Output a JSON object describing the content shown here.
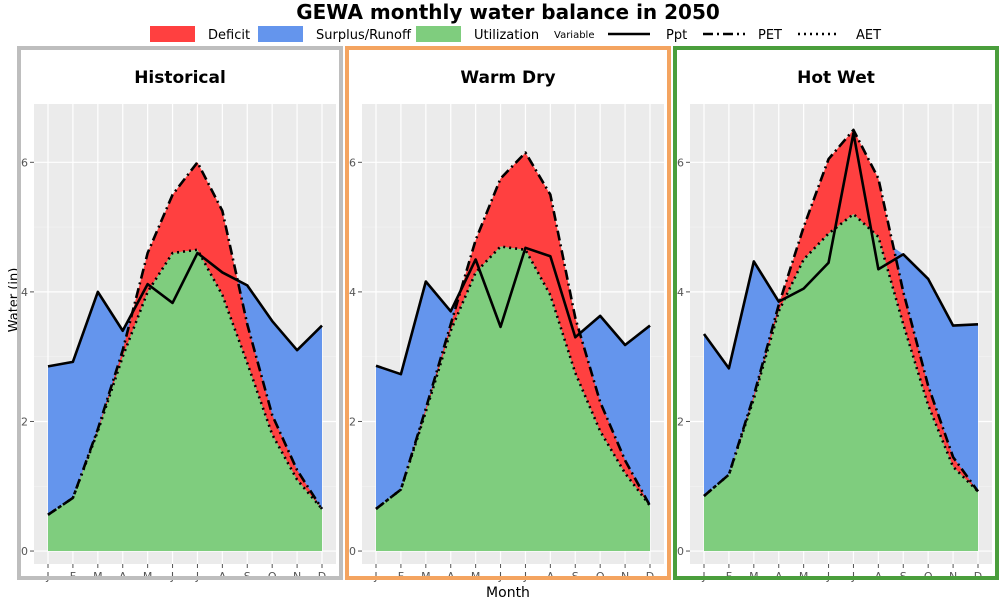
{
  "title": "GEWA monthly water balance in 2050",
  "legend": {
    "fills": [
      {
        "label": "Deficit",
        "color": "#FF4040"
      },
      {
        "label": "Surplus/Runoff",
        "color": "#6495ED"
      },
      {
        "label": "Utilization",
        "color": "#7FCD7E"
      }
    ],
    "variable_title": "Variable",
    "lines": [
      {
        "label": "Ppt",
        "style": "solid"
      },
      {
        "label": "PET",
        "style": "dashdot"
      },
      {
        "label": "AET",
        "style": "dotted"
      }
    ]
  },
  "axes": {
    "ylabel": "Water (in)",
    "xlabel": "Month",
    "yticks": [
      0,
      2,
      4,
      6
    ],
    "ylim": [
      -0.2,
      6.9
    ]
  },
  "chart_data": [
    {
      "type": "area",
      "title": "Historical",
      "border_color": "#BEBEBE",
      "categories": [
        "J",
        "F",
        "M",
        "A",
        "M",
        "J",
        "J",
        "A",
        "S",
        "O",
        "N",
        "D"
      ],
      "series": [
        {
          "name": "Ppt",
          "values": [
            2.85,
            2.92,
            4.0,
            3.4,
            4.12,
            3.83,
            4.6,
            4.3,
            4.1,
            3.55,
            3.1,
            3.48
          ]
        },
        {
          "name": "PET",
          "values": [
            0.56,
            0.82,
            1.88,
            3.1,
            4.6,
            5.5,
            6.0,
            5.25,
            3.5,
            2.1,
            1.25,
            0.65
          ]
        },
        {
          "name": "AET",
          "values": [
            0.56,
            0.82,
            1.85,
            3.0,
            4.0,
            4.6,
            4.65,
            3.95,
            2.9,
            1.8,
            1.1,
            0.65
          ]
        }
      ]
    },
    {
      "type": "area",
      "title": "Warm Dry",
      "border_color": "#F4A460",
      "categories": [
        "J",
        "F",
        "M",
        "A",
        "M",
        "J",
        "J",
        "A",
        "S",
        "O",
        "N",
        "D"
      ],
      "series": [
        {
          "name": "Ppt",
          "values": [
            2.86,
            2.73,
            4.16,
            3.7,
            4.5,
            3.46,
            4.68,
            4.55,
            3.3,
            3.63,
            3.18,
            3.48
          ]
        },
        {
          "name": "PET",
          "values": [
            0.65,
            0.95,
            2.2,
            3.5,
            4.8,
            5.75,
            6.15,
            5.5,
            3.6,
            2.3,
            1.4,
            0.7
          ]
        },
        {
          "name": "AET",
          "values": [
            0.65,
            0.95,
            2.15,
            3.4,
            4.3,
            4.7,
            4.65,
            3.95,
            2.75,
            1.85,
            1.2,
            0.7
          ]
        }
      ]
    },
    {
      "type": "area",
      "title": "Hot Wet",
      "border_color": "#4A9E3C",
      "categories": [
        "J",
        "F",
        "M",
        "A",
        "M",
        "J",
        "J",
        "A",
        "S",
        "O",
        "N",
        "D"
      ],
      "series": [
        {
          "name": "Ppt",
          "values": [
            3.35,
            2.82,
            4.47,
            3.85,
            4.05,
            4.45,
            6.45,
            4.35,
            4.58,
            4.2,
            3.48,
            3.5
          ]
        },
        {
          "name": "PET",
          "values": [
            0.85,
            1.18,
            2.4,
            3.8,
            5.0,
            6.05,
            6.5,
            5.75,
            4.0,
            2.55,
            1.45,
            0.92
          ]
        },
        {
          "name": "AET",
          "values": [
            0.85,
            1.18,
            2.35,
            3.7,
            4.5,
            4.9,
            5.2,
            4.85,
            3.5,
            2.25,
            1.3,
            0.92
          ]
        }
      ]
    }
  ]
}
